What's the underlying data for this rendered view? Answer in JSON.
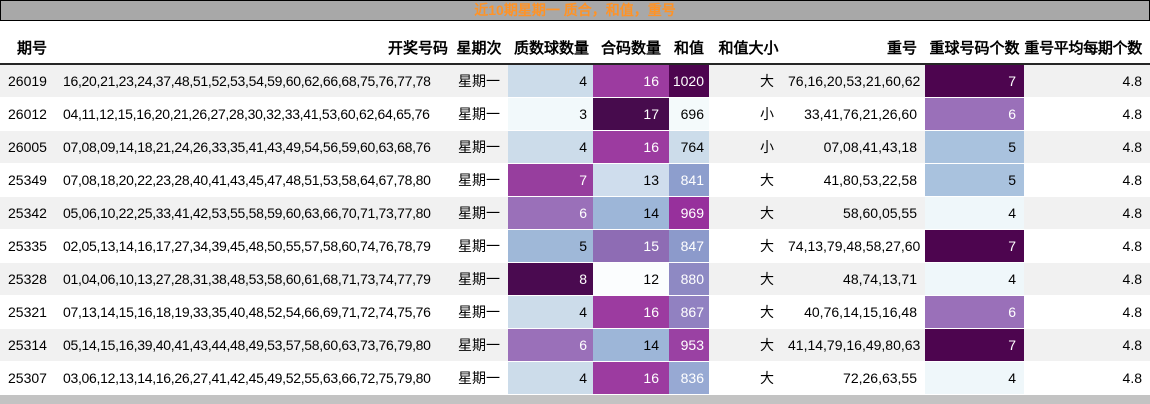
{
  "title": "近10期星期一 质合，和值，重号",
  "colors": {
    "title_bar_bg": "#a8a8a8",
    "title_text": "#ff9326",
    "row_stripe": "#f1f1f1",
    "header_border": "#262626",
    "footer_bar": "#c3c3c3",
    "heat_low": "#f7fcfd",
    "heat_high": "#4d004b"
  },
  "columns": [
    {
      "key": "period",
      "label": "期号"
    },
    {
      "key": "numbers",
      "label": "开奖号码"
    },
    {
      "key": "weekday",
      "label": "星期次"
    },
    {
      "key": "prime",
      "label": "质数球数量"
    },
    {
      "key": "comp",
      "label": "合码数量"
    },
    {
      "key": "sum",
      "label": "和值"
    },
    {
      "key": "size",
      "label": "和值大小"
    },
    {
      "key": "repeats",
      "label": "重号"
    },
    {
      "key": "rcount",
      "label": "重球号码个数"
    },
    {
      "key": "avg",
      "label": "重号平均每期个数"
    }
  ],
  "rows": [
    {
      "period": "26019",
      "numbers": "16,20,21,23,24,37,48,51,52,53,54,59,60,62,66,68,75,76,77,78",
      "weekday": "星期一",
      "prime": {
        "v": "4",
        "bg": "#ccdcea",
        "fg": "#000000"
      },
      "comp": {
        "v": "16",
        "bg": "#9c3ba0",
        "fg": "#ffffff"
      },
      "sum": {
        "v": "1020",
        "bg": "#4d054f",
        "fg": "#ffffff"
      },
      "size": "大",
      "repeats": "76,16,20,53,21,60,62",
      "rcount": {
        "v": "7",
        "bg": "#4d054f",
        "fg": "#ffffff"
      },
      "avg": "4.8"
    },
    {
      "period": "26012",
      "numbers": "04,11,12,15,16,20,21,26,27,28,30,32,33,41,53,60,62,64,65,76",
      "weekday": "星期一",
      "prime": {
        "v": "3",
        "bg": "#f2f9fb",
        "fg": "#000000"
      },
      "comp": {
        "v": "17",
        "bg": "#470b4d",
        "fg": "#ffffff"
      },
      "sum": {
        "v": "696",
        "bg": "#f4fafb",
        "fg": "#000000"
      },
      "size": "小",
      "repeats": "33,41,76,21,26,60",
      "rcount": {
        "v": "6",
        "bg": "#9a70b9",
        "fg": "#ffffff"
      },
      "avg": "4.8"
    },
    {
      "period": "26005",
      "numbers": "07,08,09,14,18,21,24,26,33,35,41,43,49,54,56,59,60,63,68,76",
      "weekday": "星期一",
      "prime": {
        "v": "4",
        "bg": "#ccdcea",
        "fg": "#000000"
      },
      "comp": {
        "v": "16",
        "bg": "#9c3ba0",
        "fg": "#ffffff"
      },
      "sum": {
        "v": "764",
        "bg": "#ccdcea",
        "fg": "#000000"
      },
      "size": "小",
      "repeats": "07,08,41,43,18",
      "rcount": {
        "v": "5",
        "bg": "#a9c2de",
        "fg": "#000000"
      },
      "avg": "4.8"
    },
    {
      "period": "25349",
      "numbers": "07,08,18,20,22,23,28,40,41,43,45,47,48,51,53,58,64,67,78,80",
      "weekday": "星期一",
      "prime": {
        "v": "7",
        "bg": "#973e9e",
        "fg": "#ffffff"
      },
      "comp": {
        "v": "13",
        "bg": "#cfdded",
        "fg": "#000000"
      },
      "sum": {
        "v": "841",
        "bg": "#8d9ecd",
        "fg": "#ffffff"
      },
      "size": "大",
      "repeats": "41,80,53,22,58",
      "rcount": {
        "v": "5",
        "bg": "#a9c2de",
        "fg": "#000000"
      },
      "avg": "4.8"
    },
    {
      "period": "25342",
      "numbers": "05,06,10,22,25,33,41,42,53,55,58,59,60,63,66,70,71,73,77,80",
      "weekday": "星期一",
      "prime": {
        "v": "6",
        "bg": "#9a70b9",
        "fg": "#ffffff"
      },
      "comp": {
        "v": "14",
        "bg": "#9db6d8",
        "fg": "#000000"
      },
      "sum": {
        "v": "969",
        "bg": "#97309c",
        "fg": "#ffffff"
      },
      "size": "大",
      "repeats": "58,60,05,55",
      "rcount": {
        "v": "4",
        "bg": "#eff7fa",
        "fg": "#000000"
      },
      "avg": "4.8"
    },
    {
      "period": "25335",
      "numbers": "02,05,13,14,16,17,27,34,39,45,48,50,55,57,58,60,74,76,78,79",
      "weekday": "星期一",
      "prime": {
        "v": "5",
        "bg": "#9fb8d8",
        "fg": "#000000"
      },
      "comp": {
        "v": "15",
        "bg": "#8e6cb4",
        "fg": "#ffffff"
      },
      "sum": {
        "v": "847",
        "bg": "#8c9acb",
        "fg": "#ffffff"
      },
      "size": "大",
      "repeats": "74,13,79,48,58,27,60",
      "rcount": {
        "v": "7",
        "bg": "#4d054f",
        "fg": "#ffffff"
      },
      "avg": "4.8"
    },
    {
      "period": "25328",
      "numbers": "01,04,06,10,13,27,28,31,38,48,53,58,60,61,68,71,73,74,77,79",
      "weekday": "星期一",
      "prime": {
        "v": "8",
        "bg": "#4a0a50",
        "fg": "#ffffff"
      },
      "comp": {
        "v": "12",
        "bg": "#fbfdfe",
        "fg": "#000000"
      },
      "sum": {
        "v": "880",
        "bg": "#8e89c3",
        "fg": "#ffffff"
      },
      "size": "大",
      "repeats": "48,74,13,71",
      "rcount": {
        "v": "4",
        "bg": "#eff7fa",
        "fg": "#000000"
      },
      "avg": "4.8"
    },
    {
      "period": "25321",
      "numbers": "07,13,14,15,16,18,19,33,35,40,48,52,54,66,69,71,72,74,75,76",
      "weekday": "星期一",
      "prime": {
        "v": "4",
        "bg": "#ccdcea",
        "fg": "#000000"
      },
      "comp": {
        "v": "16",
        "bg": "#9c3ba0",
        "fg": "#ffffff"
      },
      "sum": {
        "v": "867",
        "bg": "#9181c1",
        "fg": "#ffffff"
      },
      "size": "大",
      "repeats": "40,76,14,15,16,48",
      "rcount": {
        "v": "6",
        "bg": "#9a70b9",
        "fg": "#ffffff"
      },
      "avg": "4.8"
    },
    {
      "period": "25314",
      "numbers": "05,14,15,16,39,40,41,43,44,48,49,53,57,58,60,63,73,76,79,80",
      "weekday": "星期一",
      "prime": {
        "v": "6",
        "bg": "#9a70b9",
        "fg": "#ffffff"
      },
      "comp": {
        "v": "14",
        "bg": "#9db6d8",
        "fg": "#000000"
      },
      "sum": {
        "v": "953",
        "bg": "#9a41a3",
        "fg": "#ffffff"
      },
      "size": "大",
      "repeats": "41,14,79,16,49,80,63",
      "rcount": {
        "v": "7",
        "bg": "#4d054f",
        "fg": "#ffffff"
      },
      "avg": "4.8"
    },
    {
      "period": "25307",
      "numbers": "03,06,12,13,14,16,26,27,41,42,45,49,52,55,63,66,72,75,79,80",
      "weekday": "星期一",
      "prime": {
        "v": "4",
        "bg": "#ccdcea",
        "fg": "#000000"
      },
      "comp": {
        "v": "16",
        "bg": "#9c3ba0",
        "fg": "#ffffff"
      },
      "sum": {
        "v": "836",
        "bg": "#97a9d3",
        "fg": "#ffffff"
      },
      "size": "大",
      "repeats": "72,26,63,55",
      "rcount": {
        "v": "4",
        "bg": "#eff7fa",
        "fg": "#000000"
      },
      "avg": "4.8"
    }
  ]
}
